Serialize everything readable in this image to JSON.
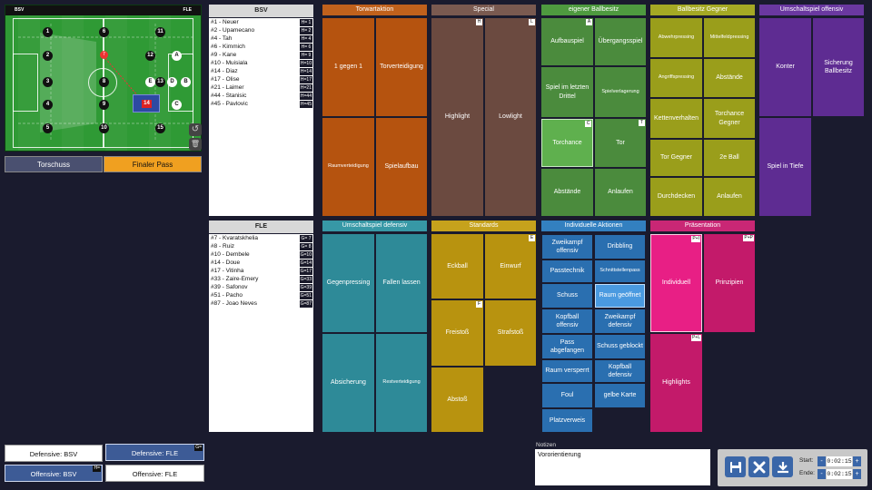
{
  "field": {
    "left_team": "BSV",
    "right_team": "FLE",
    "players_home": [
      "1",
      "2",
      "3",
      "4",
      "5",
      "6",
      "7",
      "8",
      "9",
      "10",
      "11",
      "12",
      "13"
    ],
    "players_away": [
      "A",
      "B",
      "C",
      "D",
      "E"
    ],
    "ball": "7",
    "selected_player": "14",
    "undo_icon": "undo-icon",
    "trash_icon": "trash-icon"
  },
  "tabs": {
    "shot": "Torschuss",
    "final_pass": "Finaler Pass"
  },
  "home_roster": {
    "title": "BSV",
    "players": [
      {
        "name": "#1 - Neuer",
        "code": "H= 1"
      },
      {
        "name": "#2 - Upamecano",
        "code": "H= 2"
      },
      {
        "name": "#4 - Tah",
        "code": "H= 4"
      },
      {
        "name": "#6 - Kimmich",
        "code": "H= 6"
      },
      {
        "name": "#9 - Kane",
        "code": "H= 9"
      },
      {
        "name": "#10 - Muisiala",
        "code": "H=10"
      },
      {
        "name": "#14 - Diaz",
        "code": "H=14"
      },
      {
        "name": "#17 - Olise",
        "code": "H=17"
      },
      {
        "name": "#21 - Laimer",
        "code": "H=21"
      },
      {
        "name": "#44 - Stanisic",
        "code": "H=44"
      },
      {
        "name": "#45 - Pavlovic",
        "code": "H=45"
      }
    ]
  },
  "away_roster": {
    "title": "FLE",
    "players": [
      {
        "name": "#7 - Kvaratskhelia",
        "code": "G= 7"
      },
      {
        "name": "#8 - Ruiz",
        "code": "G= 8"
      },
      {
        "name": "#10 - Dembele",
        "code": "G=10"
      },
      {
        "name": "#14 - Doue",
        "code": "G=14"
      },
      {
        "name": "#17 - Vitinha",
        "code": "G=17"
      },
      {
        "name": "#33 - Zaire-Emery",
        "code": "G=33"
      },
      {
        "name": "#39 - Safonov",
        "code": "G=39"
      },
      {
        "name": "#51 - Pacho",
        "code": "G=51"
      },
      {
        "name": "#87 - Joao Neves",
        "code": "G=87"
      }
    ]
  },
  "categories": {
    "torwartaktion": {
      "title": "Torwartaktion",
      "color": "#b5530f",
      "items": [
        "1 gegen 1",
        "Torverteidigung",
        "Raumverteidigung",
        "Spielaufbau"
      ]
    },
    "special": {
      "title": "Special",
      "color": "#6b4a40",
      "items": [
        "Highlight",
        "Lowlight"
      ],
      "badges": [
        "H",
        "L"
      ]
    },
    "eigener_ballbesitz": {
      "title": "eigener Ballbesitz",
      "color": "#4b8b3d",
      "items": [
        "Aufbauspiel",
        "Übergangsspiel",
        "Spiel im letzten Drittel",
        "Spielverlagerung",
        "Torchance",
        "Tor",
        "Abstände",
        "Anlaufen"
      ],
      "badges": [
        "A",
        "C",
        "T"
      ]
    },
    "ballbesitz_gegner": {
      "title": "Ballbesitz Gegner",
      "color": "#9a9e1b",
      "items": [
        "Abwehrpressing",
        "Mittelfeldpressing",
        "Angriffspressing",
        "Abstände",
        "Kettenverhalten",
        "Torchance Gegner",
        "Tor Gegner",
        "2e Ball",
        "Durchdecken",
        "Anlaufen"
      ]
    },
    "umschalt_offensiv": {
      "title": "Umschaltspiel offensiv",
      "color": "#5e2c92",
      "items": [
        "Konter",
        "Sicherung Ballbesitz",
        "Spiel in Tiefe"
      ]
    },
    "umschalt_defensiv": {
      "title": "Umschaltspiel defensiv",
      "color": "#2e8a98",
      "items": [
        "Gegenpressing",
        "Fallen lassen",
        "Absicherung",
        "Restverteidigung"
      ]
    },
    "standards": {
      "title": "Standards",
      "color": "#b8930f",
      "items": [
        "Eckball",
        "Einwurf",
        "Freistoß",
        "Strafstoß",
        "Abstoß"
      ],
      "badges": [
        "E",
        "F"
      ]
    },
    "individuelle": {
      "title": "Individuelle Aktionen",
      "color": "#2a6fb0",
      "items": [
        "Zweikampf offensiv",
        "Dribbling",
        "Passtechnik",
        "Schnittstellenpass",
        "Schuss",
        "Raum geöffnet",
        "Kopfball offensiv",
        "Zweikampf defensiv",
        "Pass abgefangen",
        "Schuss geblockt",
        "Raum versperrt",
        "Kopfball defensiv",
        "Foul",
        "gelbe Karte",
        "Platzverweis"
      ]
    },
    "praesentation": {
      "title": "Präsentation",
      "color": "#c31a6a",
      "items": [
        "Individuell",
        "Prinzipien",
        "Highlights"
      ],
      "badges": [
        "P+I",
        "P+P",
        "P+L"
      ]
    }
  },
  "mode_buttons": {
    "def_bsv": "Defensive: BSV",
    "def_fle": "Defensive: FLE",
    "off_bsv": "Offensive: BSV",
    "off_fle": "Offensive: FLE",
    "badge_h": "H=",
    "badge_g": "G="
  },
  "notes": {
    "label": "Notizen",
    "value": "Vororientierung"
  },
  "controls": {
    "start_label": "Start:",
    "end_label": "Ende:",
    "start_time": "0:02:15",
    "end_time": "0:02:15",
    "minus": "-",
    "plus": "+",
    "save_icon": "save-icon",
    "close_icon": "close-icon",
    "download_icon": "download-icon"
  }
}
